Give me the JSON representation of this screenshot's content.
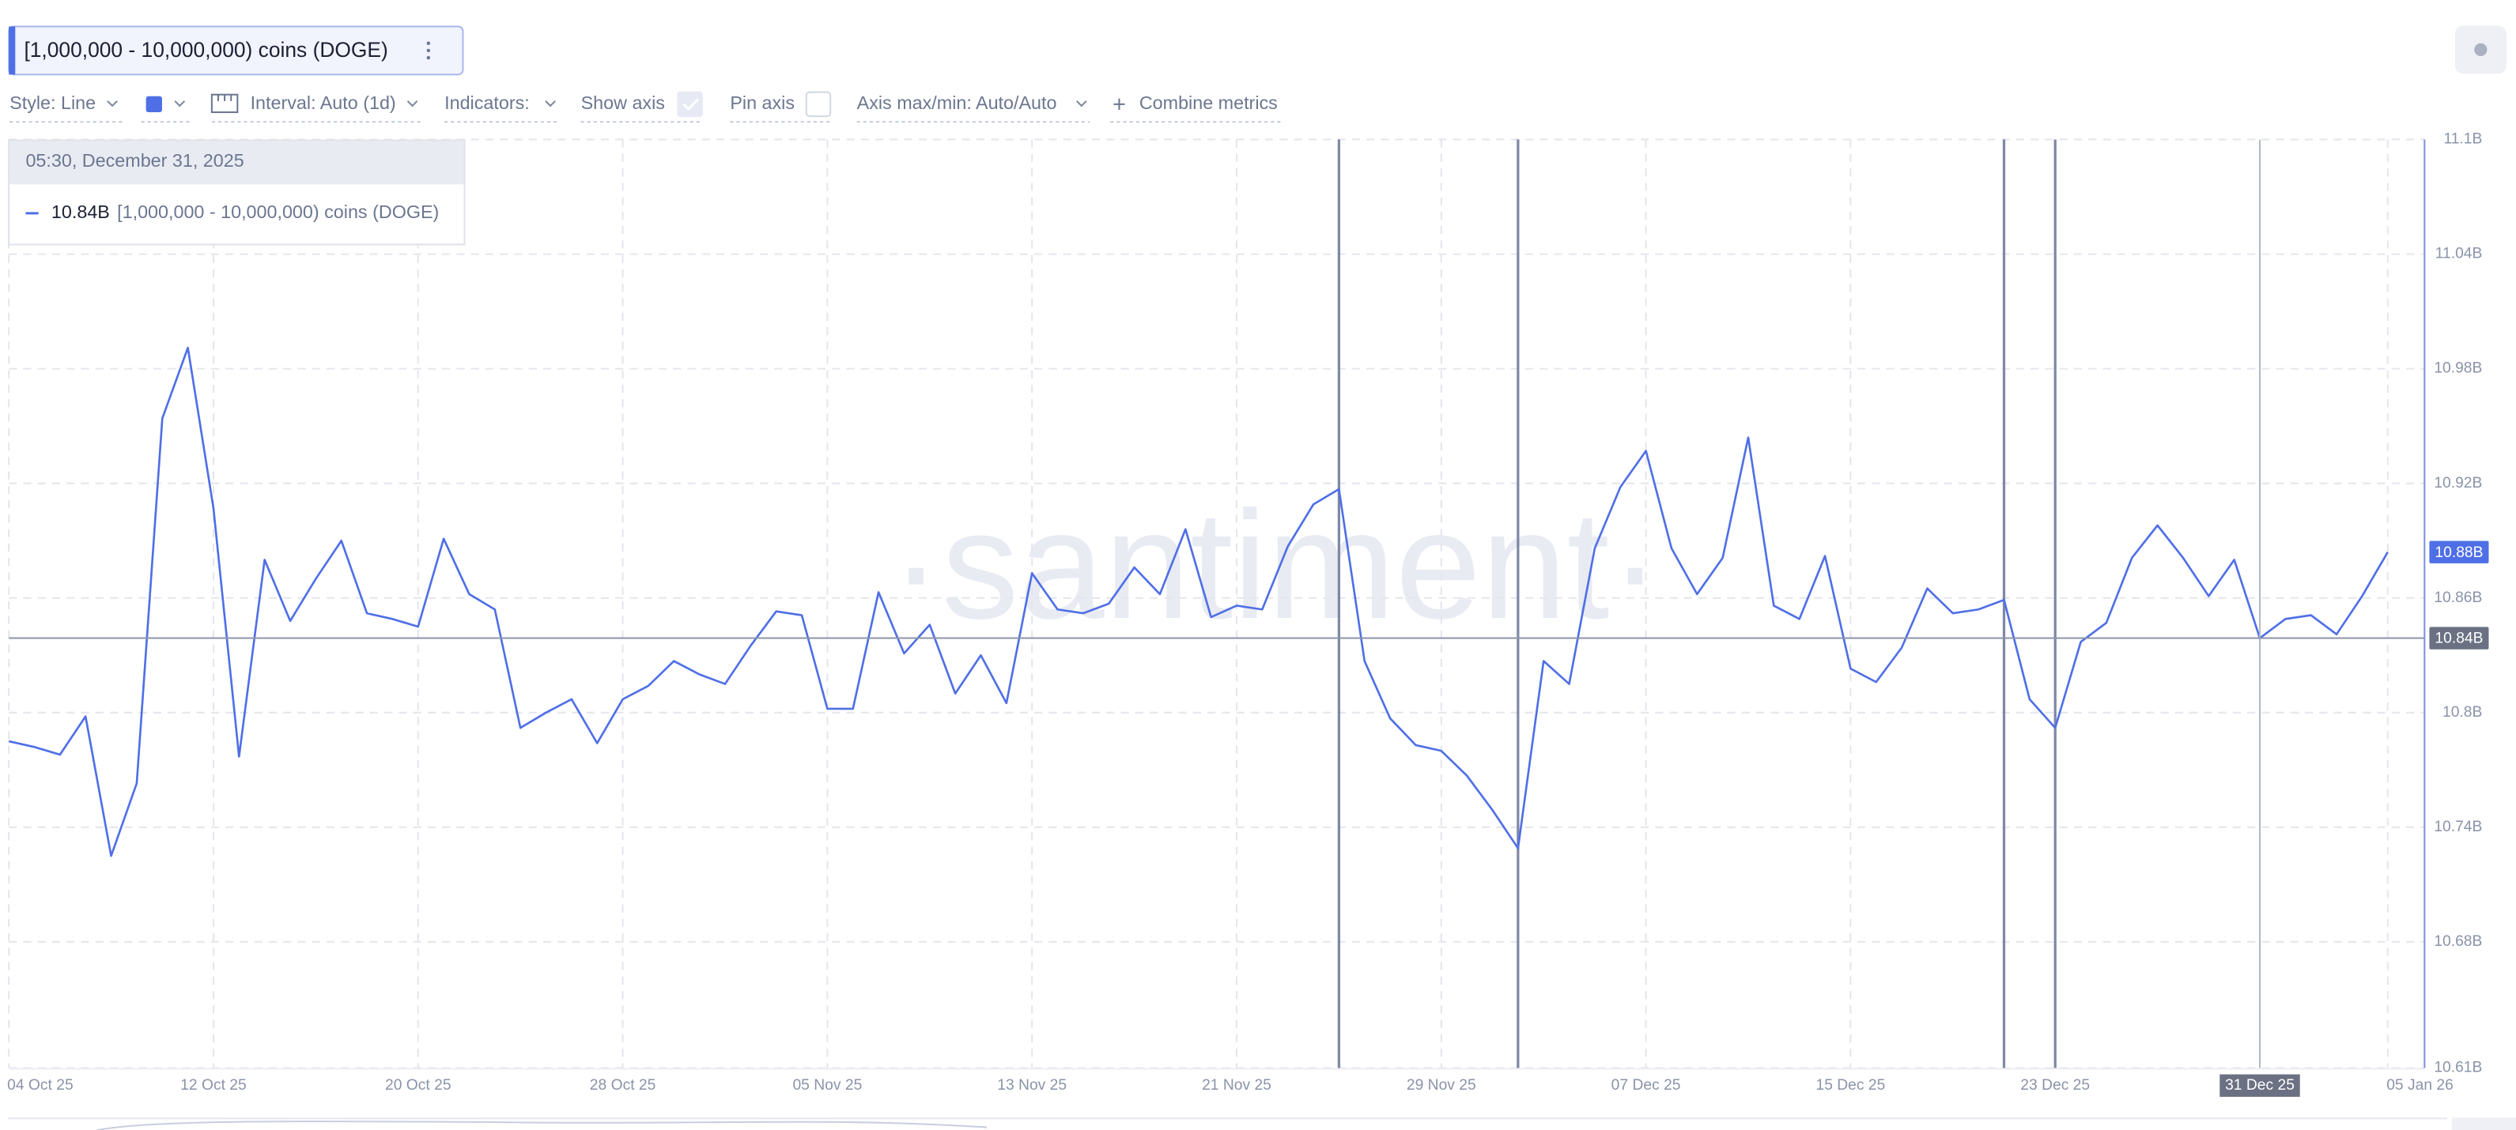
{
  "chart_data": {
    "type": "line",
    "title": "[1,000,000 - 10,000,000) coins (DOGE)",
    "x": [
      "2025-10-04",
      "2025-10-05",
      "2025-10-06",
      "2025-10-07",
      "2025-10-08",
      "2025-10-09",
      "2025-10-10",
      "2025-10-11",
      "2025-10-12",
      "2025-10-13",
      "2025-10-14",
      "2025-10-15",
      "2025-10-16",
      "2025-10-17",
      "2025-10-18",
      "2025-10-19",
      "2025-10-20",
      "2025-10-21",
      "2025-10-22",
      "2025-10-23",
      "2025-10-24",
      "2025-10-25",
      "2025-10-26",
      "2025-10-27",
      "2025-10-28",
      "2025-10-29",
      "2025-10-30",
      "2025-10-31",
      "2025-11-01",
      "2025-11-02",
      "2025-11-03",
      "2025-11-04",
      "2025-11-05",
      "2025-11-06",
      "2025-11-07",
      "2025-11-08",
      "2025-11-09",
      "2025-11-10",
      "2025-11-11",
      "2025-11-12",
      "2025-11-13",
      "2025-11-14",
      "2025-11-15",
      "2025-11-16",
      "2025-11-17",
      "2025-11-18",
      "2025-11-19",
      "2025-11-20",
      "2025-11-21",
      "2025-11-22",
      "2025-11-23",
      "2025-11-24",
      "2025-11-25",
      "2025-11-26",
      "2025-11-27",
      "2025-11-28",
      "2025-11-29",
      "2025-11-30",
      "2025-12-01",
      "2025-12-02",
      "2025-12-03",
      "2025-12-04",
      "2025-12-05",
      "2025-12-06",
      "2025-12-07",
      "2025-12-08",
      "2025-12-09",
      "2025-12-10",
      "2025-12-11",
      "2025-12-12",
      "2025-12-13",
      "2025-12-14",
      "2025-12-15",
      "2025-12-16",
      "2025-12-17",
      "2025-12-18",
      "2025-12-19",
      "2025-12-20",
      "2025-12-21",
      "2025-12-22",
      "2025-12-23",
      "2025-12-24",
      "2025-12-25",
      "2025-12-26",
      "2025-12-27",
      "2025-12-28",
      "2025-12-29",
      "2025-12-30",
      "2025-12-31",
      "2026-01-01",
      "2026-01-02",
      "2026-01-03",
      "2026-01-04",
      "2026-01-05"
    ],
    "series": [
      {
        "name": "[1,000,000 - 10,000,000) coins (DOGE)",
        "color": "#4f6fe6",
        "values": [
          10.785,
          10.782,
          10.778,
          10.798,
          10.725,
          10.763,
          10.954,
          10.991,
          10.907,
          10.777,
          10.88,
          10.848,
          10.87,
          10.89,
          10.852,
          10.849,
          10.845,
          10.891,
          10.862,
          10.854,
          10.792,
          10.8,
          10.807,
          10.784,
          10.807,
          10.814,
          10.827,
          10.82,
          10.815,
          10.835,
          10.853,
          10.851,
          10.802,
          10.802,
          10.863,
          10.831,
          10.846,
          10.81,
          10.83,
          10.805,
          10.873,
          10.854,
          10.852,
          10.857,
          10.876,
          10.862,
          10.896,
          10.85,
          10.856,
          10.854,
          10.887,
          10.909,
          10.917,
          10.827,
          10.797,
          10.783,
          10.78,
          10.767,
          10.749,
          10.729,
          10.827,
          10.815,
          10.886,
          10.918,
          10.937,
          10.886,
          10.862,
          10.881,
          10.944,
          10.856,
          10.849,
          10.882,
          10.823,
          10.816,
          10.834,
          10.865,
          10.852,
          10.854,
          10.859,
          10.807,
          10.792,
          10.837,
          10.847,
          10.881,
          10.898,
          10.881,
          10.861,
          10.88,
          10.839,
          10.849,
          10.851,
          10.841,
          10.861,
          10.884
        ]
      }
    ],
    "xlim": [
      "2025-10-04",
      "2026-01-06"
    ],
    "xticks": [
      {
        "value": "2025-10-04",
        "label": "04 Oct 25"
      },
      {
        "value": "2025-10-12",
        "label": "12 Oct 25"
      },
      {
        "value": "2025-10-20",
        "label": "20 Oct 25"
      },
      {
        "value": "2025-10-28",
        "label": "28 Oct 25"
      },
      {
        "value": "2025-11-05",
        "label": "05 Nov 25"
      },
      {
        "value": "2025-11-13",
        "label": "13 Nov 25"
      },
      {
        "value": "2025-11-21",
        "label": "21 Nov 25"
      },
      {
        "value": "2025-11-29",
        "label": "29 Nov 25"
      },
      {
        "value": "2025-12-07",
        "label": "07 Dec 25"
      },
      {
        "value": "2025-12-15",
        "label": "15 Dec 25"
      },
      {
        "value": "2025-12-23",
        "label": "23 Dec 25"
      },
      {
        "value": "2025-12-31",
        "label": "31 Dec 25"
      },
      {
        "value": "2026-01-05",
        "label": "05 Jan 26"
      }
    ],
    "ylim": [
      10.614,
      11.1
    ],
    "yticks": [
      {
        "value": 11.1,
        "label": "11.1B"
      },
      {
        "value": 11.04,
        "label": "11.04B"
      },
      {
        "value": 10.98,
        "label": "10.98B"
      },
      {
        "value": 10.92,
        "label": "10.92B"
      },
      {
        "value": 10.86,
        "label": "10.86B"
      },
      {
        "value": 10.8,
        "label": "10.8B"
      },
      {
        "value": 10.74,
        "label": "10.74B"
      },
      {
        "value": 10.68,
        "label": "10.68B"
      },
      {
        "value": 10.614,
        "label": "10.61B"
      }
    ],
    "grid": true,
    "vertical_lines": [
      "2025-11-25",
      "2025-12-02",
      "2025-12-21",
      "2025-12-23"
    ],
    "crosshair": "2025-12-31"
  },
  "ui": {
    "toolbar": {
      "style": "Style: Line",
      "interval": "Interval: Auto (1d)",
      "indicators": "Indicators:",
      "show_axis": "Show axis",
      "pin_axis": "Pin axis",
      "axis_minmax": "Axis max/min: Auto/Auto",
      "combine": "Combine metrics"
    },
    "tooltip": {
      "time": "05:30, December 31, 2025",
      "value": "10.84B"
    },
    "badges": {
      "last": "10.88B",
      "hover": "10.84B"
    },
    "watermark": "·santiment·"
  }
}
